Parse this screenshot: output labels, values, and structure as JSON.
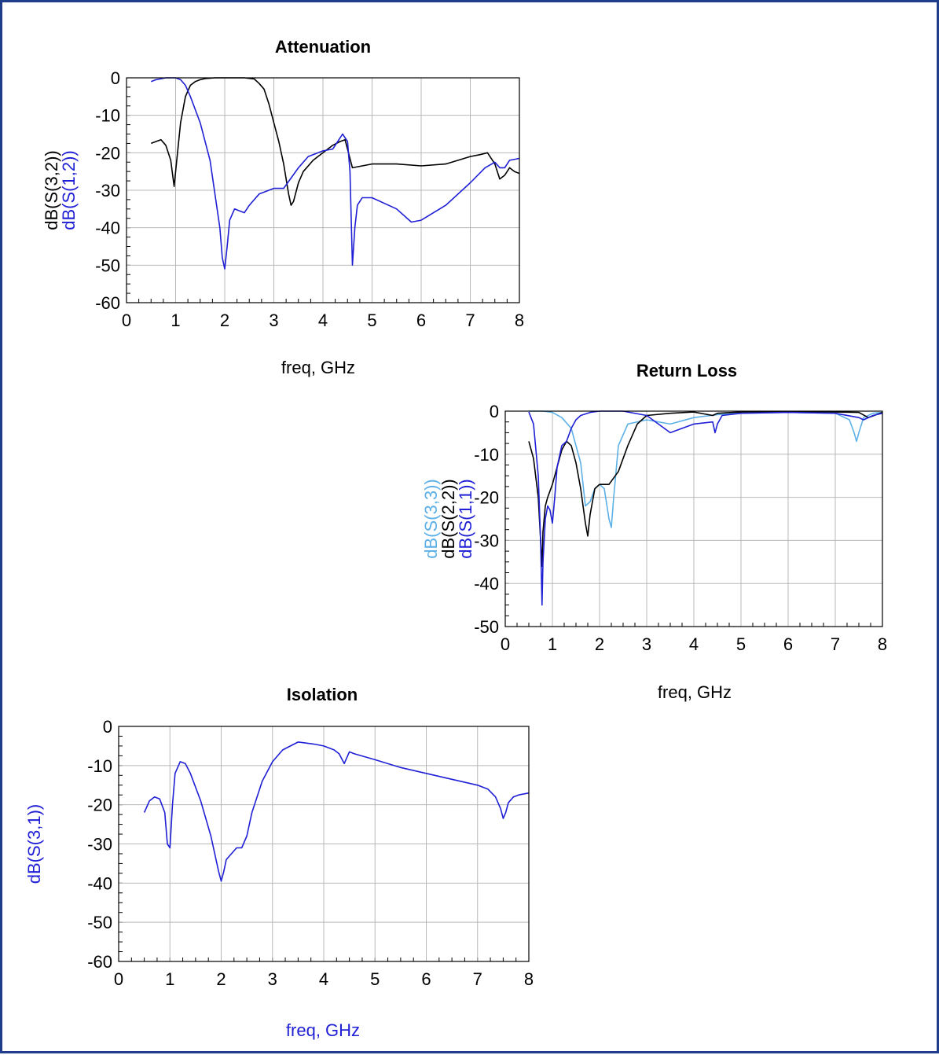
{
  "colors": {
    "black": "#000000",
    "blue": "#1f1fd6",
    "light_blue": "#5cb0e8",
    "frame": "#1f3d8a"
  },
  "chart_data": [
    {
      "type": "line",
      "title": "Attenuation",
      "xlabel": "freq, GHz",
      "xlabel_color": "#000000",
      "xlim": [
        0,
        8
      ],
      "ylim": [
        -60,
        0
      ],
      "xticks": [
        0,
        1,
        2,
        3,
        4,
        5,
        6,
        7,
        8
      ],
      "yticks": [
        0,
        -10,
        -20,
        -30,
        -40,
        -50,
        -60
      ],
      "grid": true,
      "series": [
        {
          "name": "dB(S(3,2))",
          "color": "#000000",
          "x": [
            0.5,
            0.6,
            0.7,
            0.8,
            0.9,
            0.97,
            1.0,
            1.1,
            1.2,
            1.3,
            1.4,
            1.5,
            1.6,
            1.8,
            2.0,
            2.2,
            2.4,
            2.6,
            2.7,
            2.8,
            2.9,
            3.0,
            3.1,
            3.2,
            3.3,
            3.35,
            3.4,
            3.5,
            3.6,
            3.8,
            4.0,
            4.2,
            4.35,
            4.45,
            4.6,
            5.0,
            5.5,
            6.0,
            6.5,
            7.0,
            7.2,
            7.35,
            7.5,
            7.6,
            7.7,
            7.8,
            7.9,
            8.0
          ],
          "y": [
            -17.5,
            -17,
            -16.5,
            -18,
            -22,
            -29,
            -25,
            -12,
            -5,
            -2,
            -1,
            -0.5,
            -0.2,
            0,
            0,
            0,
            0,
            -0.3,
            -1.5,
            -3,
            -7,
            -12,
            -17,
            -23,
            -31,
            -34,
            -33,
            -28,
            -25,
            -22,
            -20,
            -18,
            -17,
            -16.5,
            -24,
            -23,
            -23,
            -23.5,
            -23,
            -21,
            -20.5,
            -20,
            -23,
            -27,
            -26,
            -24,
            -25,
            -25.5
          ]
        },
        {
          "name": "dB(S(1,2))",
          "color": "#1f1fd6",
          "x": [
            0.5,
            0.6,
            0.8,
            1.0,
            1.1,
            1.2,
            1.3,
            1.5,
            1.7,
            1.9,
            1.95,
            2.0,
            2.05,
            2.1,
            2.2,
            2.4,
            2.5,
            2.7,
            3.0,
            3.2,
            3.5,
            3.7,
            4.0,
            4.2,
            4.3,
            4.4,
            4.5,
            4.55,
            4.6,
            4.65,
            4.7,
            4.8,
            5.0,
            5.5,
            5.8,
            6.0,
            6.5,
            7.0,
            7.3,
            7.5,
            7.6,
            7.7,
            7.8,
            8.0
          ],
          "y": [
            -1,
            -0.5,
            0,
            0,
            -0.5,
            -2,
            -5,
            -12,
            -22,
            -40,
            -48,
            -51,
            -45,
            -38,
            -35,
            -36,
            -34,
            -31,
            -29.5,
            -29.5,
            -24,
            -21,
            -19.5,
            -19,
            -17,
            -15,
            -17,
            -25,
            -50,
            -40,
            -34,
            -32,
            -32,
            -35,
            -38.5,
            -38,
            -34,
            -28,
            -24,
            -22.5,
            -24,
            -24,
            -22,
            -21.5
          ]
        }
      ]
    },
    {
      "type": "line",
      "title": "Return Loss",
      "xlabel": "freq, GHz",
      "xlabel_color": "#000000",
      "xlim": [
        0,
        8
      ],
      "ylim": [
        -50,
        0
      ],
      "xticks": [
        0,
        1,
        2,
        3,
        4,
        5,
        6,
        7,
        8
      ],
      "yticks": [
        0,
        -10,
        -20,
        -30,
        -40,
        -50
      ],
      "grid": true,
      "series": [
        {
          "name": "dB(S(3,3))",
          "color": "#5cb0e8",
          "x": [
            0.5,
            0.8,
            1.0,
            1.2,
            1.4,
            1.6,
            1.7,
            1.8,
            1.9,
            2.0,
            2.1,
            2.2,
            2.25,
            2.3,
            2.4,
            2.6,
            3.0,
            3.5,
            4.0,
            4.5,
            5.0,
            6.0,
            7.0,
            7.3,
            7.4,
            7.45,
            7.5,
            7.6,
            7.8,
            8.0
          ],
          "y": [
            0,
            0,
            -0.3,
            -1.5,
            -4,
            -12,
            -22,
            -21,
            -18,
            -17,
            -18,
            -25,
            -27,
            -20,
            -8,
            -3,
            -2,
            -3,
            -1.5,
            -0.8,
            -0.5,
            -0.3,
            -0.5,
            -2,
            -5,
            -7,
            -5,
            -1.5,
            -0.5,
            -0.3
          ]
        },
        {
          "name": "dB(S(2,2))",
          "color": "#000000",
          "x": [
            0.5,
            0.6,
            0.7,
            0.75,
            0.78,
            0.8,
            0.85,
            0.9,
            1.0,
            1.2,
            1.3,
            1.4,
            1.5,
            1.6,
            1.7,
            1.75,
            1.8,
            1.9,
            2.0,
            2.2,
            2.4,
            2.6,
            2.8,
            3.0,
            3.5,
            4.0,
            4.4,
            4.5,
            5.0,
            6.0,
            7.0,
            7.5,
            7.7,
            8.0
          ],
          "y": [
            -7,
            -11,
            -20,
            -30,
            -36,
            -28,
            -22,
            -20,
            -17,
            -9,
            -7,
            -8,
            -12,
            -18,
            -26,
            -29,
            -24,
            -18,
            -17,
            -17,
            -14,
            -8,
            -3,
            -1,
            -0.5,
            -0.2,
            -1,
            -0.5,
            -0.2,
            -0.1,
            -0.2,
            -0.3,
            -1.5,
            -0.3
          ]
        },
        {
          "name": "dB(S(1,1))",
          "color": "#1f1fd6",
          "x": [
            0.5,
            0.6,
            0.7,
            0.75,
            0.78,
            0.8,
            0.85,
            0.9,
            0.95,
            1.0,
            1.05,
            1.1,
            1.2,
            1.3,
            1.4,
            1.5,
            1.6,
            1.8,
            2.0,
            2.5,
            3.0,
            3.5,
            4.0,
            4.4,
            4.45,
            4.5,
            4.6,
            5.0,
            6.0,
            7.0,
            7.5,
            7.6,
            7.8,
            8.0
          ],
          "y": [
            -0.2,
            -3,
            -15,
            -30,
            -45,
            -35,
            -25,
            -22,
            -23,
            -26,
            -20,
            -13,
            -8,
            -7,
            -4,
            -2,
            -1,
            -0.3,
            0,
            0,
            -1,
            -5,
            -3,
            -2.5,
            -5,
            -3,
            -1,
            -0.5,
            -0.3,
            -0.5,
            -1.5,
            -2,
            -1,
            -0.5
          ]
        }
      ]
    },
    {
      "type": "line",
      "title": "Isolation",
      "xlabel": "freq, GHz",
      "xlabel_color": "#1f1fd6",
      "xlim": [
        0,
        8
      ],
      "ylim": [
        -60,
        0
      ],
      "xticks": [
        0,
        1,
        2,
        3,
        4,
        5,
        6,
        7,
        8
      ],
      "yticks": [
        0,
        -10,
        -20,
        -30,
        -40,
        -50,
        -60
      ],
      "grid": true,
      "series": [
        {
          "name": "dB(S(3,1))",
          "color": "#1f1fd6",
          "x": [
            0.5,
            0.6,
            0.7,
            0.8,
            0.9,
            0.95,
            1.0,
            1.05,
            1.1,
            1.2,
            1.3,
            1.4,
            1.6,
            1.8,
            1.95,
            2.0,
            2.05,
            2.1,
            2.3,
            2.4,
            2.5,
            2.6,
            2.8,
            3.0,
            3.2,
            3.5,
            3.8,
            4.0,
            4.2,
            4.3,
            4.4,
            4.5,
            4.6,
            5.0,
            5.5,
            6.0,
            6.5,
            7.0,
            7.2,
            7.35,
            7.45,
            7.5,
            7.55,
            7.6,
            7.7,
            7.8,
            8.0
          ],
          "y": [
            -22,
            -19,
            -18,
            -18.5,
            -22,
            -30,
            -31,
            -20,
            -12,
            -9,
            -9.5,
            -12,
            -19,
            -28,
            -37,
            -39.5,
            -37,
            -34,
            -31,
            -31,
            -28,
            -22,
            -14,
            -9,
            -6,
            -4,
            -4.5,
            -5,
            -6,
            -7,
            -9.5,
            -6.5,
            -7,
            -8.5,
            -10.5,
            -12,
            -13.5,
            -15,
            -16,
            -18,
            -21,
            -23.5,
            -22,
            -19.5,
            -18,
            -17.5,
            -17
          ]
        }
      ]
    }
  ]
}
